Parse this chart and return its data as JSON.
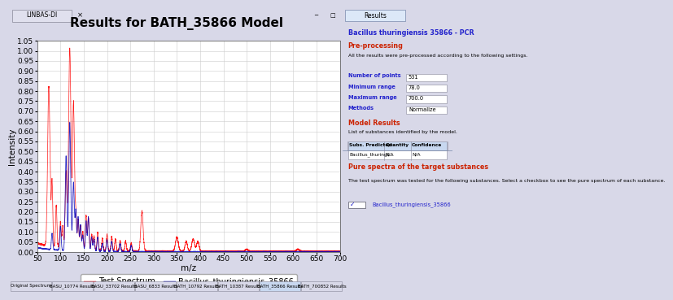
{
  "title": "Results for BATH_35866 Model",
  "xlabel": "m/z",
  "ylabel": "Intensity",
  "xlim": [
    50,
    700
  ],
  "ylim": [
    0.0,
    1.05
  ],
  "yticks": [
    0.0,
    0.05,
    0.1,
    0.15,
    0.2,
    0.25,
    0.3,
    0.35,
    0.4,
    0.45,
    0.5,
    0.55,
    0.6,
    0.65,
    0.7,
    0.75,
    0.8,
    0.85,
    0.9,
    0.95,
    1.0,
    1.05
  ],
  "xticks": [
    50,
    100,
    150,
    200,
    250,
    300,
    350,
    400,
    450,
    500,
    550,
    600,
    650,
    700
  ],
  "legend_labels": [
    "Test Spectrum",
    "Bacillus_thuringiensis_35866"
  ],
  "legend_colors": [
    "#ff0000",
    "#0000bb"
  ],
  "bg_color": "#d8d8e8",
  "plot_bg_color": "#ffffff",
  "grid_color": "#cccccc",
  "title_fontsize": 11,
  "axis_label_fontsize": 7.5,
  "tick_fontsize": 6.5,
  "legend_fontsize": 7,
  "tab_labels": [
    "Original Spectrum",
    "BASU_10774 Results",
    "BASU_33702 Results",
    "BASU_6833 Results",
    "BATH_10792 Results",
    "BATH_10387 Results",
    "BATH_35866 Results",
    "BATH_700852 Results"
  ],
  "active_tab": 6,
  "right_panel_bg": "#e8eef8",
  "right_title": "Bacillus thuringiensis 35866 - PCR",
  "right_section1": "Pre-processing",
  "right_text1": "All the results were pre-processed according to the following settings.",
  "right_fields": [
    [
      "Number of points",
      "531"
    ],
    [
      "Minimum range",
      "78.0"
    ],
    [
      "Maximum range",
      "700.0"
    ],
    [
      "Methods",
      "Normalize"
    ]
  ],
  "right_section2": "Model Results",
  "right_text2": "List of substances identified by the model.",
  "right_table_header": [
    "Subs. Predicted",
    "Quantity",
    "Confidence"
  ],
  "right_table_row": [
    "Bacillus_thuringi...",
    "N/A",
    "N/A"
  ],
  "right_section3": "Pure spectra of the target substances",
  "right_text3": "The test spectrum was tested for the following substances. Select a checkbox to see the pure spectrum of each substance.",
  "right_checkbox_label": "Bacillus_thuringiensis_35866",
  "topbar_label": "LINBAS-DI",
  "results_tab_label": "Results"
}
